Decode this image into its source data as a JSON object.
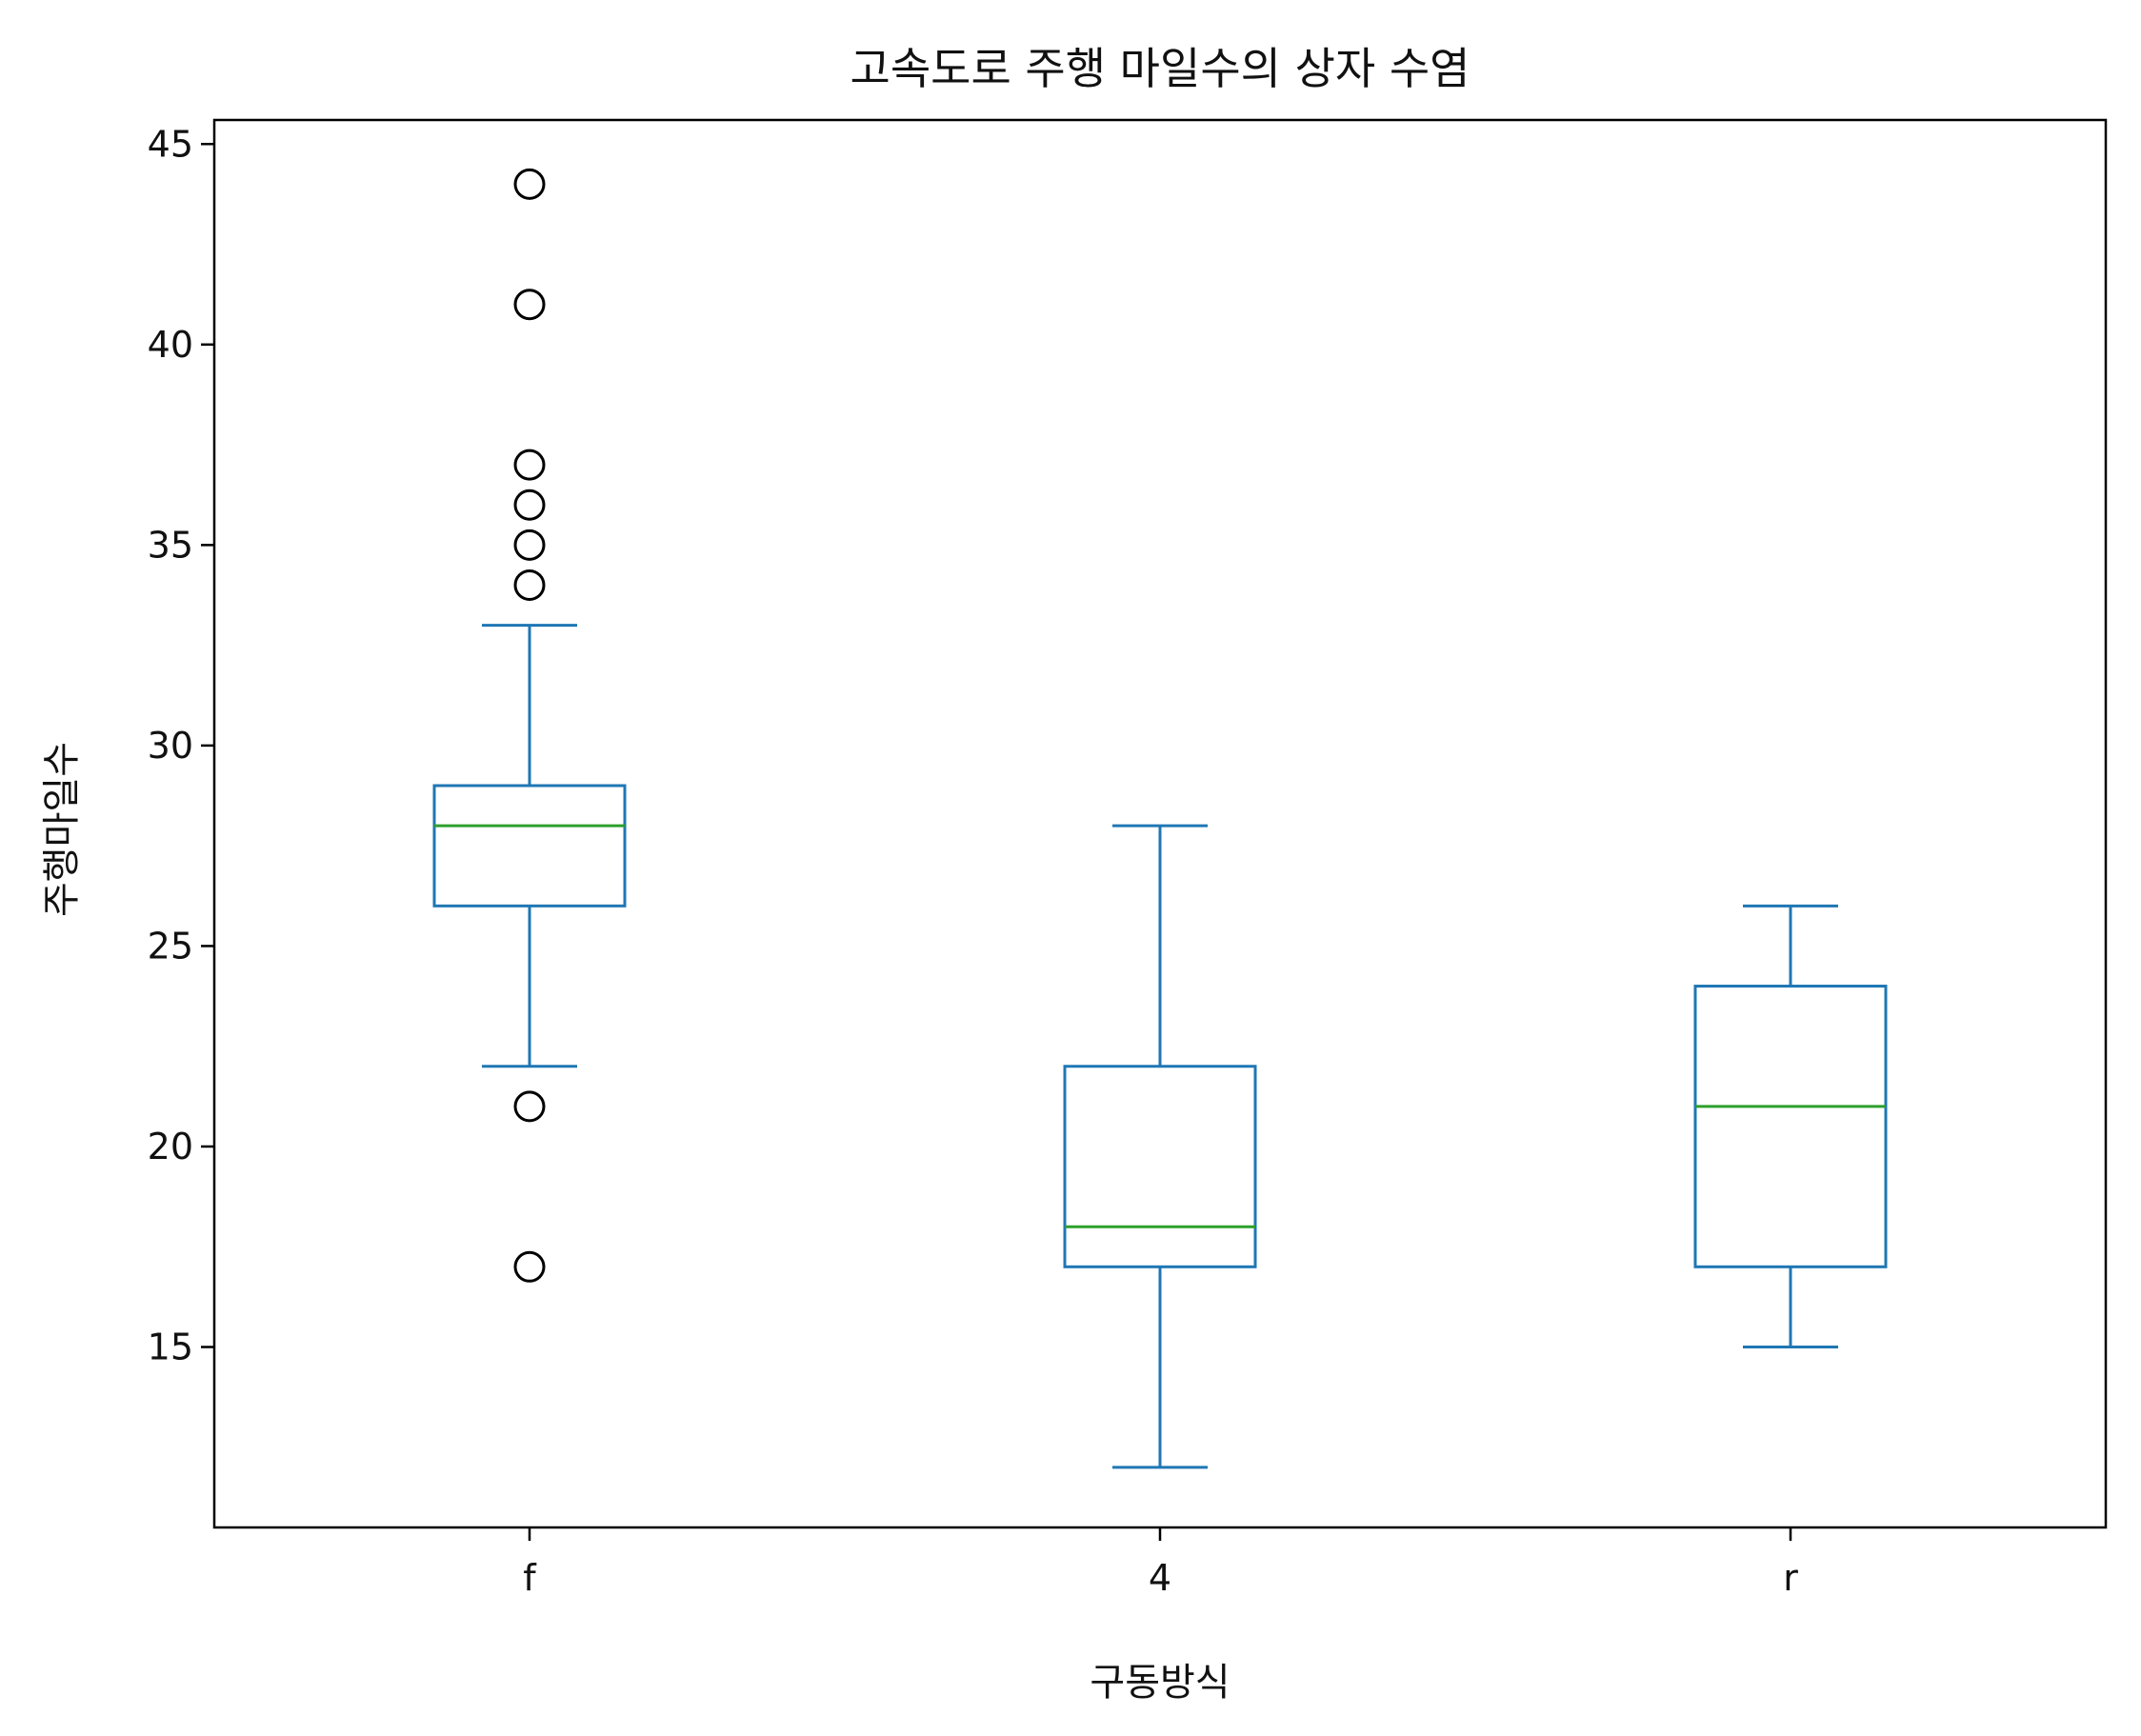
{
  "chart_data": {
    "type": "box",
    "title": "고속도로 주행 마일수의 상자 수염",
    "xlabel": "구동방식",
    "ylabel": "주행마일수",
    "categories": [
      "f",
      "4",
      "r"
    ],
    "ylim": [
      10.5,
      45.6
    ],
    "yticks": [
      15,
      20,
      25,
      30,
      35,
      40,
      45
    ],
    "grid": false,
    "boxes": [
      {
        "category": "f",
        "whisker_low": 22,
        "q1": 26,
        "median": 28,
        "q3": 29,
        "whisker_high": 33,
        "outliers": [
          17,
          21,
          34,
          35,
          36,
          37,
          41,
          44
        ]
      },
      {
        "category": "4",
        "whisker_low": 12,
        "q1": 17,
        "median": 18,
        "q3": 22,
        "whisker_high": 28,
        "outliers": []
      },
      {
        "category": "r",
        "whisker_low": 15,
        "q1": 17,
        "median": 21,
        "q3": 24,
        "whisker_high": 26,
        "outliers": []
      }
    ],
    "colors": {
      "box": "#1f77b4",
      "median": "#2ca02c",
      "outlier_edge": "#000000",
      "axes": "#000000"
    }
  }
}
